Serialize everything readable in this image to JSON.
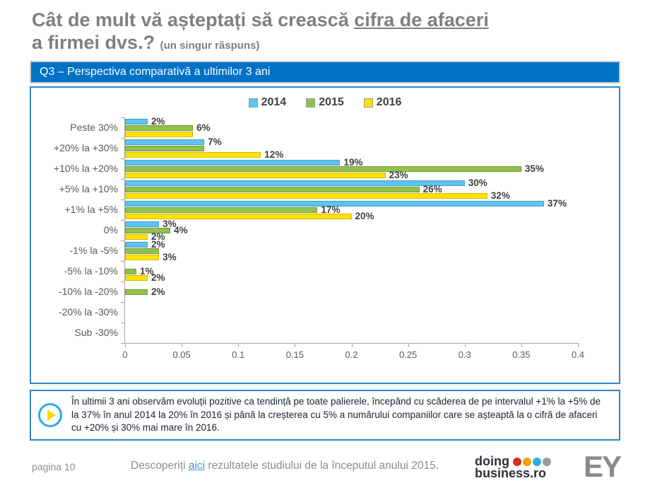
{
  "header": {
    "title_prefix": "Cât de mult vă așteptați să crească ",
    "title_underline": "cifra de afaceri",
    "title_line2": "a firmei dvs.?",
    "title_note": "(un singur răspuns)",
    "banner_label": "Q3 – Perspectiva comparativă a ultimilor 3 ani"
  },
  "chart_data": {
    "type": "bar",
    "orientation": "horizontal",
    "title": "Q3 – Perspectiva comparativă a ultimilor 3 ani",
    "categories": [
      "Peste 30%",
      "+20% la +30%",
      "+10% la +20%",
      "+5% la +10%",
      "+1% la +5%",
      "0%",
      "-1% la -5%",
      "-5% la -10%",
      "-10% la -20%",
      "-20% la -30%",
      "Sub -30%"
    ],
    "series": [
      {
        "name": "2014",
        "color": "#5FC3EF",
        "border_color": "#3f9fc9",
        "values": [
          2,
          7,
          19,
          30,
          37,
          3,
          2,
          0,
          0,
          0,
          0
        ],
        "labels": [
          "2%",
          "7%",
          "19%",
          "30%",
          "37%",
          "3%",
          "2%",
          "",
          "",
          "",
          ""
        ]
      },
      {
        "name": "2015",
        "color": "#92C050",
        "border_color": "#6f9c33",
        "values": [
          6,
          7,
          35,
          26,
          17,
          4,
          3,
          1,
          2,
          0,
          0
        ],
        "labels": [
          "6%",
          "",
          "35%",
          "26%",
          "17%",
          "4%",
          "",
          "1%",
          "2%",
          "",
          ""
        ]
      },
      {
        "name": "2016",
        "color": "#FFE100",
        "border_color": "#d4b900",
        "values": [
          6,
          12,
          23,
          32,
          20,
          2,
          3,
          2,
          0,
          0,
          0
        ],
        "labels": [
          "",
          "12%",
          "23%",
          "32%",
          "20%",
          "2%",
          "3%",
          "2%",
          "",
          "",
          ""
        ]
      }
    ],
    "x_ticks": [
      "0",
      "0.05",
      "0.1",
      "0.15",
      "0.2",
      "0.25",
      "0.3",
      "0.35",
      "0.4"
    ],
    "xlim": [
      0,
      0.4
    ],
    "xlabel": "",
    "ylabel": "",
    "grid": false,
    "legend_position": "top",
    "value_unit": "percent"
  },
  "note": {
    "text": "În ultimii 3 ani observăm evoluții pozitive ca tendință pe toate palierele, începând cu scăderea de pe intervalul +1% la +5% de la 37% în anul 2014 la 20% în 2016 și până la creșterea cu 5% a numărului companiilor care se așteaptă la o cifră de afaceri cu +20% și 30% mai mare în 2016."
  },
  "footer": {
    "page_label": "pagina 10",
    "text_prefix": "Descoperiți ",
    "link_text": "aici",
    "text_suffix": " rezultatele studiului de la începutul anului 2015.",
    "logo_doing": {
      "line1": "doing",
      "line2": "business.ro",
      "dot_colors": [
        "#D12E26",
        "#F2A00C",
        "#2FA9E0",
        "#9B9B9B"
      ]
    },
    "logo_ey": "EY"
  },
  "colors": {
    "banner_blue": "#0072C6",
    "panel_border_blue": "#2E86C8",
    "title_gray": "#7f7f7f",
    "axis_gray": "#a6a6a6",
    "link_blue": "#4a90d9"
  }
}
